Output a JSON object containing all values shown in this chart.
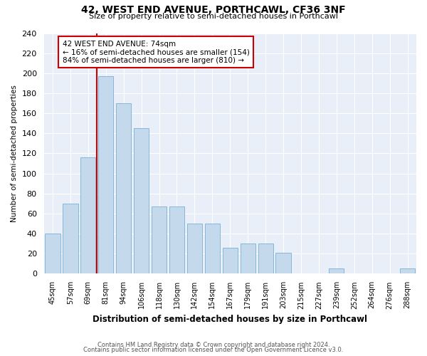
{
  "title": "42, WEST END AVENUE, PORTHCAWL, CF36 3NF",
  "subtitle": "Size of property relative to semi-detached houses in Porthcawl",
  "xlabel": "Distribution of semi-detached houses by size in Porthcawl",
  "ylabel": "Number of semi-detached properties",
  "categories": [
    "45sqm",
    "57sqm",
    "69sqm",
    "81sqm",
    "94sqm",
    "106sqm",
    "118sqm",
    "130sqm",
    "142sqm",
    "154sqm",
    "167sqm",
    "179sqm",
    "191sqm",
    "203sqm",
    "215sqm",
    "227sqm",
    "239sqm",
    "252sqm",
    "264sqm",
    "276sqm",
    "288sqm"
  ],
  "values": [
    40,
    70,
    116,
    197,
    170,
    145,
    67,
    67,
    50,
    50,
    26,
    30,
    30,
    21,
    0,
    0,
    5,
    0,
    0,
    0,
    5
  ],
  "bar_color": "#c5d9ed",
  "bar_edge_color": "#7aafd4",
  "annotation_label": "42 WEST END AVENUE: 74sqm",
  "annotation_line1": "← 16% of semi-detached houses are smaller (154)",
  "annotation_line2": "84% of semi-detached houses are larger (810) →",
  "marker_color": "#cc0000",
  "ylim": [
    0,
    240
  ],
  "yticks": [
    0,
    20,
    40,
    60,
    80,
    100,
    120,
    140,
    160,
    180,
    200,
    220,
    240
  ],
  "footnote1": "Contains HM Land Registry data © Crown copyright and database right 2024.",
  "footnote2": "Contains public sector information licensed under the Open Government Licence v3.0.",
  "bg_color": "#ffffff",
  "plot_bg_color": "#e8eff8",
  "grid_color": "#ffffff"
}
